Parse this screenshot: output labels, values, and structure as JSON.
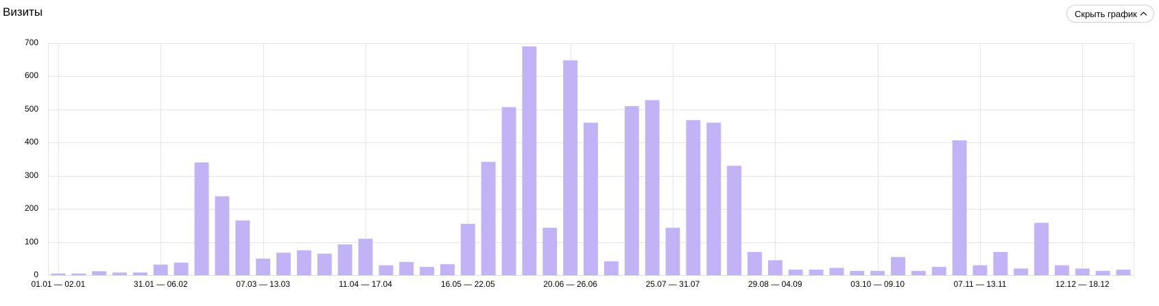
{
  "header": {
    "title": "Визиты",
    "hide_chart_button": "Скрыть график",
    "hide_chart_icon": "chevron-up-icon"
  },
  "colors": {
    "bar": "#c2b3f7",
    "grid": "#e4e4e4",
    "axis_text": "#000000"
  },
  "chart_data": {
    "type": "bar",
    "title": "Визиты",
    "xlabel": "",
    "ylabel": "",
    "ylim": [
      0,
      700
    ],
    "yticks": [
      0,
      100,
      200,
      300,
      400,
      500,
      600,
      700
    ],
    "grid": true,
    "legend": null,
    "x_tick_labels": [
      {
        "index": 0,
        "label": "01.01 — 02.01"
      },
      {
        "index": 5,
        "label": "31.01 — 06.02"
      },
      {
        "index": 10,
        "label": "07.03 — 13.03"
      },
      {
        "index": 15,
        "label": "11.04 — 17.04"
      },
      {
        "index": 20,
        "label": "16.05 — 22.05"
      },
      {
        "index": 25,
        "label": "20.06 — 26.06"
      },
      {
        "index": 30,
        "label": "25.07 — 31.07"
      },
      {
        "index": 35,
        "label": "29.08 — 04.09"
      },
      {
        "index": 40,
        "label": "03.10 — 09.10"
      },
      {
        "index": 45,
        "label": "07.11 — 13.11"
      },
      {
        "index": 50,
        "label": "12.12 — 18.12"
      }
    ],
    "series": [
      {
        "name": "Визиты",
        "values": [
          5,
          5,
          12,
          8,
          8,
          32,
          38,
          340,
          238,
          165,
          50,
          68,
          75,
          65,
          93,
          110,
          30,
          40,
          25,
          33,
          155,
          342,
          507,
          690,
          143,
          648,
          460,
          42,
          510,
          528,
          143,
          468,
          460,
          330,
          70,
          45,
          17,
          17,
          22,
          13,
          13,
          55,
          13,
          25,
          407,
          30,
          70,
          20,
          158,
          30,
          20,
          13,
          17
        ]
      }
    ]
  }
}
